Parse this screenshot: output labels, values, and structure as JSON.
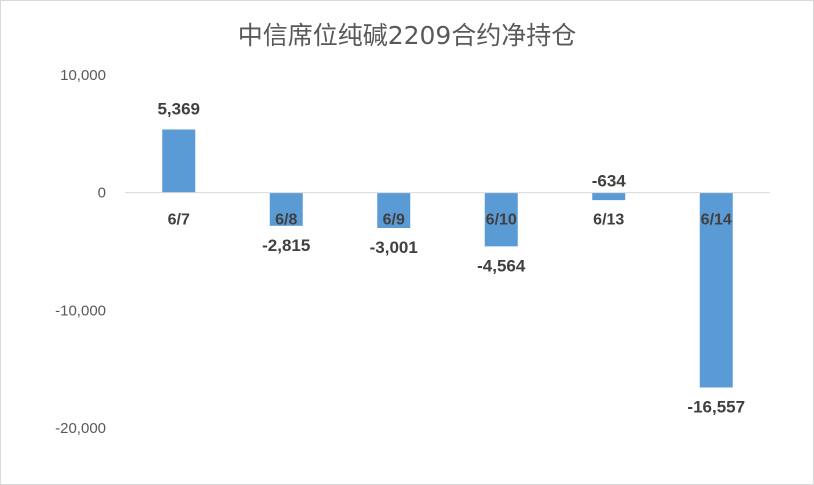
{
  "chart_data": {
    "type": "bar",
    "title": "中信席位纯碱2209合约净持仓",
    "categories": [
      "6/7",
      "6/8",
      "6/9",
      "6/10",
      "6/13",
      "6/14"
    ],
    "values": [
      5369,
      -2815,
      -3001,
      -4564,
      -634,
      -16557
    ],
    "value_labels": [
      "5,369",
      "-2,815",
      "-3,001",
      "-4,564",
      "-634",
      "-16,557"
    ],
    "yticks": [
      10000,
      0,
      -10000,
      -20000
    ],
    "ytick_labels": [
      "10,000",
      "0",
      "-10,000",
      "-20,000"
    ],
    "ylim": [
      -20000,
      10000
    ],
    "xlabel": "",
    "ylabel": "",
    "grid": false,
    "legend": "none",
    "bar_color": "#5b9bd5"
  }
}
